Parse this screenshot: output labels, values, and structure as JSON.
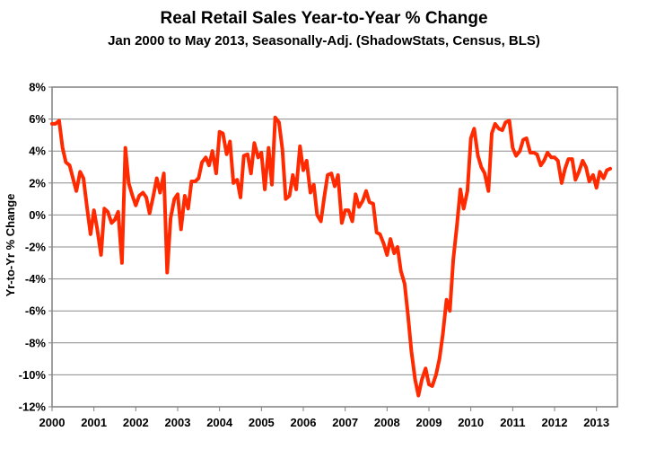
{
  "chart_data": {
    "type": "line",
    "title": "Real Retail Sales Year-to-Year % Change",
    "subtitle": "Jan 2000 to May 2013, Seasonally-Adj. (ShadowStats, Census, BLS)",
    "xlabel": "",
    "ylabel": "Yr-to-Yr % Change",
    "x_ticks": [
      "2000",
      "2001",
      "2002",
      "2003",
      "2004",
      "2005",
      "2006",
      "2007",
      "2008",
      "2009",
      "2010",
      "2011",
      "2012",
      "2013"
    ],
    "y_ticks": [
      "8%",
      "6%",
      "4%",
      "2%",
      "0%",
      "-2%",
      "-4%",
      "-6%",
      "-8%",
      "-10%",
      "-12%"
    ],
    "xlim": [
      2000,
      2013.5
    ],
    "ylim": [
      -12,
      8
    ],
    "grid": true,
    "line_color": "#ff2a00",
    "series": [
      {
        "values": [
          [
            2000.0,
            5.7
          ],
          [
            2000.08,
            5.7
          ],
          [
            2000.17,
            5.9
          ],
          [
            2000.25,
            4.2
          ],
          [
            2000.33,
            3.3
          ],
          [
            2000.42,
            3.1
          ],
          [
            2000.5,
            2.3
          ],
          [
            2000.58,
            1.5
          ],
          [
            2000.67,
            2.7
          ],
          [
            2000.75,
            2.3
          ],
          [
            2000.83,
            0.6
          ],
          [
            2000.92,
            -1.2
          ],
          [
            2001.0,
            0.3
          ],
          [
            2001.08,
            -0.9
          ],
          [
            2001.17,
            -2.5
          ],
          [
            2001.25,
            0.4
          ],
          [
            2001.33,
            0.2
          ],
          [
            2001.42,
            -0.5
          ],
          [
            2001.5,
            -0.3
          ],
          [
            2001.58,
            0.2
          ],
          [
            2001.67,
            -3.0
          ],
          [
            2001.75,
            4.2
          ],
          [
            2001.83,
            2.0
          ],
          [
            2001.92,
            1.2
          ],
          [
            2002.0,
            0.6
          ],
          [
            2002.08,
            1.2
          ],
          [
            2002.17,
            1.4
          ],
          [
            2002.25,
            1.1
          ],
          [
            2002.33,
            0.1
          ],
          [
            2002.42,
            1.2
          ],
          [
            2002.5,
            2.3
          ],
          [
            2002.58,
            1.4
          ],
          [
            2002.67,
            2.6
          ],
          [
            2002.75,
            -3.6
          ],
          [
            2002.83,
            -0.2
          ],
          [
            2002.92,
            1.0
          ],
          [
            2003.0,
            1.3
          ],
          [
            2003.08,
            -0.9
          ],
          [
            2003.17,
            1.2
          ],
          [
            2003.25,
            0.4
          ],
          [
            2003.33,
            2.1
          ],
          [
            2003.42,
            2.1
          ],
          [
            2003.5,
            2.3
          ],
          [
            2003.58,
            3.3
          ],
          [
            2003.67,
            3.6
          ],
          [
            2003.75,
            3.1
          ],
          [
            2003.83,
            4.0
          ],
          [
            2003.92,
            2.6
          ],
          [
            2004.0,
            5.2
          ],
          [
            2004.08,
            5.1
          ],
          [
            2004.17,
            3.8
          ],
          [
            2004.25,
            4.6
          ],
          [
            2004.33,
            2.0
          ],
          [
            2004.42,
            2.2
          ],
          [
            2004.5,
            1.1
          ],
          [
            2004.58,
            3.7
          ],
          [
            2004.67,
            3.8
          ],
          [
            2004.75,
            2.6
          ],
          [
            2004.83,
            4.5
          ],
          [
            2004.92,
            3.6
          ],
          [
            2005.0,
            3.9
          ],
          [
            2005.08,
            1.6
          ],
          [
            2005.17,
            4.2
          ],
          [
            2005.25,
            1.9
          ],
          [
            2005.33,
            6.1
          ],
          [
            2005.42,
            5.8
          ],
          [
            2005.5,
            4.1
          ],
          [
            2005.58,
            1.0
          ],
          [
            2005.67,
            1.2
          ],
          [
            2005.75,
            2.5
          ],
          [
            2005.83,
            1.6
          ],
          [
            2005.92,
            4.3
          ],
          [
            2006.0,
            2.8
          ],
          [
            2006.08,
            3.4
          ],
          [
            2006.17,
            1.4
          ],
          [
            2006.25,
            1.9
          ],
          [
            2006.33,
            0.0
          ],
          [
            2006.42,
            -0.4
          ],
          [
            2006.5,
            1.1
          ],
          [
            2006.58,
            2.5
          ],
          [
            2006.67,
            2.6
          ],
          [
            2006.75,
            1.8
          ],
          [
            2006.83,
            2.5
          ],
          [
            2006.92,
            -0.5
          ],
          [
            2007.0,
            0.3
          ],
          [
            2007.08,
            0.3
          ],
          [
            2007.17,
            -0.4
          ],
          [
            2007.25,
            1.3
          ],
          [
            2007.33,
            0.5
          ],
          [
            2007.42,
            0.9
          ],
          [
            2007.5,
            1.5
          ],
          [
            2007.58,
            0.8
          ],
          [
            2007.67,
            0.7
          ],
          [
            2007.75,
            -1.1
          ],
          [
            2007.83,
            -1.2
          ],
          [
            2007.92,
            -1.8
          ],
          [
            2008.0,
            -2.5
          ],
          [
            2008.08,
            -1.5
          ],
          [
            2008.17,
            -2.4
          ],
          [
            2008.25,
            -2.0
          ],
          [
            2008.33,
            -3.5
          ],
          [
            2008.42,
            -4.3
          ],
          [
            2008.5,
            -6.3
          ],
          [
            2008.58,
            -8.5
          ],
          [
            2008.67,
            -10.3
          ],
          [
            2008.75,
            -11.3
          ],
          [
            2008.83,
            -10.3
          ],
          [
            2008.92,
            -9.6
          ],
          [
            2009.0,
            -10.6
          ],
          [
            2009.08,
            -10.7
          ],
          [
            2009.17,
            -10.0
          ],
          [
            2009.25,
            -9.0
          ],
          [
            2009.33,
            -7.5
          ],
          [
            2009.42,
            -5.3
          ],
          [
            2009.5,
            -6.0
          ],
          [
            2009.58,
            -2.8
          ],
          [
            2009.67,
            -0.6
          ],
          [
            2009.75,
            1.6
          ],
          [
            2009.83,
            0.4
          ],
          [
            2009.92,
            1.5
          ],
          [
            2010.0,
            4.8
          ],
          [
            2010.08,
            5.4
          ],
          [
            2010.17,
            3.7
          ],
          [
            2010.25,
            3.0
          ],
          [
            2010.33,
            2.6
          ],
          [
            2010.42,
            1.5
          ],
          [
            2010.5,
            5.1
          ],
          [
            2010.58,
            5.7
          ],
          [
            2010.67,
            5.4
          ],
          [
            2010.75,
            5.3
          ],
          [
            2010.83,
            5.8
          ],
          [
            2010.92,
            5.9
          ],
          [
            2011.0,
            4.2
          ],
          [
            2011.08,
            3.7
          ],
          [
            2011.17,
            4.0
          ],
          [
            2011.25,
            4.7
          ],
          [
            2011.33,
            4.8
          ],
          [
            2011.42,
            3.9
          ],
          [
            2011.5,
            3.9
          ],
          [
            2011.58,
            3.8
          ],
          [
            2011.67,
            3.1
          ],
          [
            2011.75,
            3.4
          ],
          [
            2011.83,
            3.9
          ],
          [
            2011.92,
            3.6
          ],
          [
            2012.0,
            3.6
          ],
          [
            2012.08,
            3.4
          ],
          [
            2012.17,
            2.0
          ],
          [
            2012.25,
            2.9
          ],
          [
            2012.33,
            3.5
          ],
          [
            2012.42,
            3.5
          ],
          [
            2012.5,
            2.2
          ],
          [
            2012.58,
            2.7
          ],
          [
            2012.67,
            3.4
          ],
          [
            2012.75,
            3.0
          ],
          [
            2012.83,
            2.1
          ],
          [
            2012.92,
            2.5
          ],
          [
            2013.0,
            1.7
          ],
          [
            2013.08,
            2.7
          ],
          [
            2013.17,
            2.3
          ],
          [
            2013.25,
            2.8
          ],
          [
            2013.33,
            2.9
          ]
        ]
      }
    ]
  }
}
